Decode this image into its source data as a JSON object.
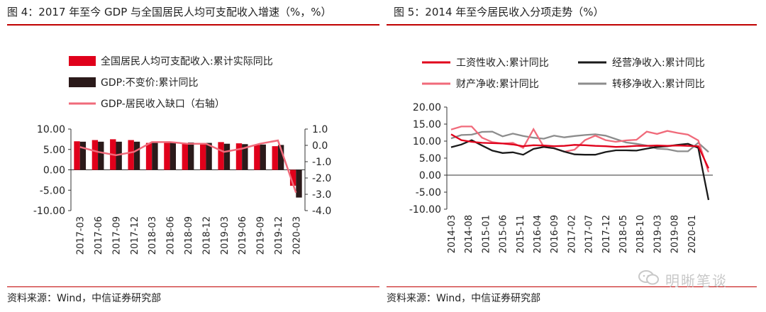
{
  "left": {
    "title": "图 4：2017 年至今 GDP 与全国居民人均可支配收入增速（%，%）",
    "source": "资料来源：Wind，中信证券研究部",
    "legend": [
      {
        "label": "全国居民人均可支配收入:累计实际同比",
        "kind": "bar",
        "color": "#e0001b"
      },
      {
        "label": "GDP:不变价:累计同比",
        "kind": "bar",
        "color": "#2b1a1a"
      },
      {
        "label": "GDP-居民收入缺口（右轴）",
        "kind": "line",
        "color": "#f06a7a"
      }
    ]
  },
  "right": {
    "title": "图 5：2014 年至今居民收入分项走势（%）",
    "source": "资料来源：Wind，中信证券研究部",
    "legend": [
      {
        "label": "工资性收入:累计同比",
        "color": "#e0001b"
      },
      {
        "label": "经营净收入:累计同比",
        "color": "#1a1a1a"
      },
      {
        "label": "财产净收:累计同比",
        "color": "#f06a7a"
      },
      {
        "label": "转移净收入:累计同比",
        "color": "#8c8c8c"
      }
    ]
  },
  "watermark": {
    "text": "明晰笔谈"
  },
  "chart_data": [
    {
      "type": "bar",
      "categories": [
        "2017-03",
        "2017-06",
        "2017-09",
        "2017-12",
        "2018-03",
        "2018-06",
        "2018-09",
        "2018-12",
        "2019-03",
        "2019-06",
        "2019-09",
        "2019-12",
        "2020-03"
      ],
      "x_tick_labels": [
        "2017-03",
        "2017-06",
        "2017-09",
        "2017-12",
        "2018-03",
        "2018-06",
        "2018-09",
        "2018-12",
        "2019-03",
        "2019-06",
        "2019-09",
        "2019-12",
        "2020-03"
      ],
      "series": [
        {
          "name": "全国居民人均可支配收入:累计实际同比",
          "axis": "left",
          "values": [
            7.0,
            7.3,
            7.5,
            7.3,
            6.6,
            6.6,
            6.6,
            6.5,
            6.8,
            6.5,
            6.1,
            5.8,
            -3.9
          ]
        },
        {
          "name": "GDP:不变价:累计同比",
          "axis": "left",
          "values": [
            6.9,
            6.9,
            6.9,
            6.9,
            6.8,
            6.8,
            6.7,
            6.6,
            6.4,
            6.3,
            6.2,
            6.1,
            -6.8
          ]
        },
        {
          "name": "GDP-居民收入缺口（右轴）",
          "axis": "right",
          "type": "line",
          "values": [
            -0.1,
            -0.4,
            -0.6,
            -0.4,
            0.2,
            0.2,
            0.1,
            0.1,
            -0.4,
            -0.2,
            0.1,
            0.3,
            -2.9
          ]
        }
      ],
      "ylim": [
        -10,
        10
      ],
      "y_ticks": [
        "10.00",
        "5.00",
        "0.00",
        "-5.00",
        "-10.00"
      ],
      "y2lim": [
        -4,
        1
      ],
      "y2_ticks": [
        "1.0",
        "0.0",
        "-1.0",
        "-2.0",
        "-3.0",
        "-4.0"
      ],
      "legend_position": "top"
    },
    {
      "type": "line",
      "x_tick_labels": [
        "2014-03",
        "2014-08",
        "2015-01",
        "2015-06",
        "2015-11",
        "2016-04",
        "2016-09",
        "2017-02",
        "2017-07",
        "2017-12",
        "2018-05",
        "2018-10",
        "2019-03",
        "2019-08",
        "2020-01"
      ],
      "x_start_label": "2014-03",
      "x_step": "quarter",
      "series": [
        {
          "name": "工资性收入:累计同比",
          "values": [
            12.0,
            10.3,
            9.8,
            9.5,
            9.4,
            9.3,
            9.0,
            8.5,
            8.8,
            8.7,
            8.5,
            8.6,
            8.9,
            8.8,
            8.6,
            8.5,
            8.3,
            8.4,
            8.6,
            8.6,
            8.7,
            8.6,
            8.7,
            8.6,
            8.5,
            2.0
          ]
        },
        {
          "name": "经营净收入:累计同比",
          "values": [
            8.2,
            9.0,
            10.3,
            8.7,
            7.2,
            6.5,
            6.7,
            6.0,
            7.7,
            8.3,
            7.9,
            6.9,
            6.1,
            6.0,
            6.0,
            6.8,
            7.3,
            7.3,
            7.2,
            7.8,
            8.3,
            8.5,
            8.9,
            9.2,
            8.0,
            -7.3
          ]
        },
        {
          "name": "财产净收:累计同比",
          "values": [
            13.4,
            14.3,
            14.3,
            11.0,
            9.7,
            9.3,
            9.5,
            8.0,
            13.5,
            8.3,
            7.9,
            6.9,
            7.5,
            10.3,
            11.6,
            10.3,
            9.8,
            10.2,
            10.4,
            12.8,
            12.1,
            13.0,
            12.4,
            11.9,
            10.2,
            0.9
          ]
        },
        {
          "name": "转移净收入:累计同比",
          "values": [
            10.8,
            11.8,
            11.9,
            12.7,
            12.8,
            11.4,
            12.2,
            11.5,
            11.0,
            10.7,
            11.6,
            11.1,
            11.5,
            11.8,
            12.0,
            11.6,
            10.6,
            9.6,
            9.2,
            8.7,
            7.8,
            7.6,
            7.0,
            7.0,
            9.5,
            6.8
          ]
        }
      ],
      "ylim": [
        -10,
        20
      ],
      "y_ticks": [
        "20.00",
        "15.00",
        "10.00",
        "5.00",
        "0.00",
        "-5.00",
        "-10.00"
      ],
      "legend_position": "top"
    }
  ]
}
